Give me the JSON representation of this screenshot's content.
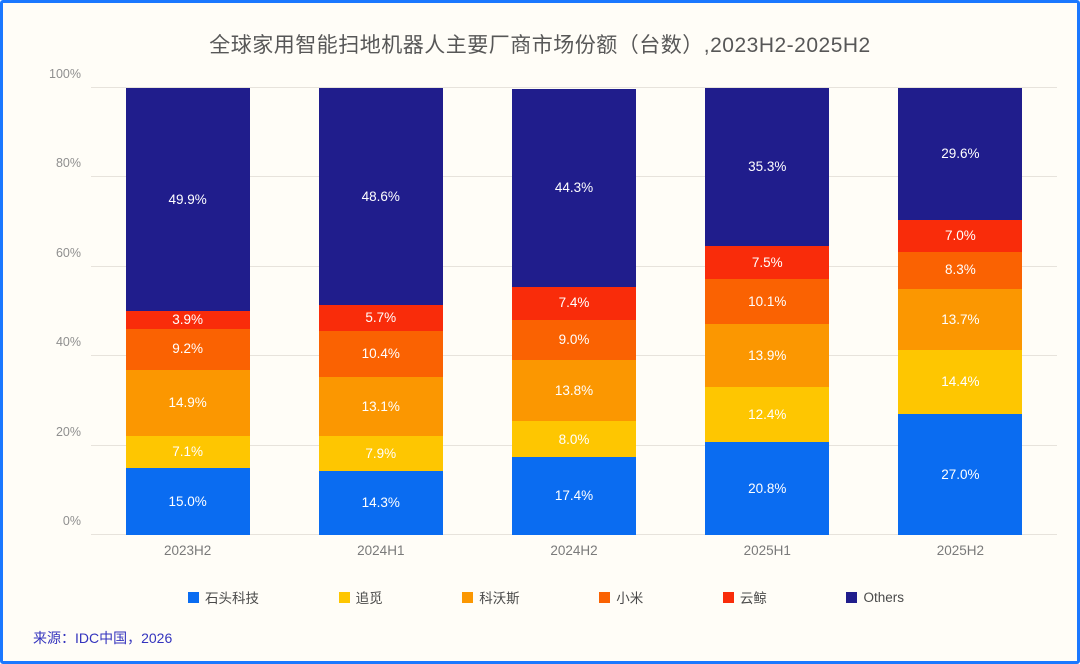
{
  "title": "全球家用智能扫地机器人主要厂商市场份额（台数）,2023H2-2025H2",
  "source": "来源：IDC中国，2026",
  "frame": {
    "border_color": "#1B78FF",
    "background_color": "#FFFDF7",
    "gridline_color": "#E7E3DC"
  },
  "chart_data": {
    "type": "bar",
    "stacked": true,
    "title": "全球家用智能扫地机器人主要厂商市场份额（台数）,2023H2-2025H2",
    "categories": [
      "2023H2",
      "2024H1",
      "2024H2",
      "2025H1",
      "2025H2"
    ],
    "series": [
      {
        "name": "石头科技",
        "color": "#0A6CF1",
        "values": [
          15.0,
          14.3,
          17.4,
          20.8,
          27.0
        ]
      },
      {
        "name": "追觅",
        "color": "#FEC601",
        "values": [
          7.1,
          7.9,
          8.0,
          12.4,
          14.4
        ]
      },
      {
        "name": "科沃斯",
        "color": "#FB9701",
        "values": [
          14.9,
          13.1,
          13.8,
          13.9,
          13.7
        ]
      },
      {
        "name": "小米",
        "color": "#FA6202",
        "values": [
          9.2,
          10.4,
          9.0,
          10.1,
          8.3
        ]
      },
      {
        "name": "云鲸",
        "color": "#F92C0A",
        "values": [
          3.9,
          5.7,
          7.4,
          7.5,
          7.0
        ]
      },
      {
        "name": "Others",
        "color": "#201D8C",
        "values": [
          49.9,
          48.6,
          44.3,
          35.3,
          29.6
        ]
      }
    ],
    "xlabel": "",
    "ylabel": "",
    "ylim": [
      0,
      100
    ],
    "y_ticks": [
      "0%",
      "20%",
      "40%",
      "60%",
      "80%",
      "100%"
    ],
    "grid": true,
    "data_label_format": "one_decimal_percent",
    "legend_position": "bottom"
  }
}
